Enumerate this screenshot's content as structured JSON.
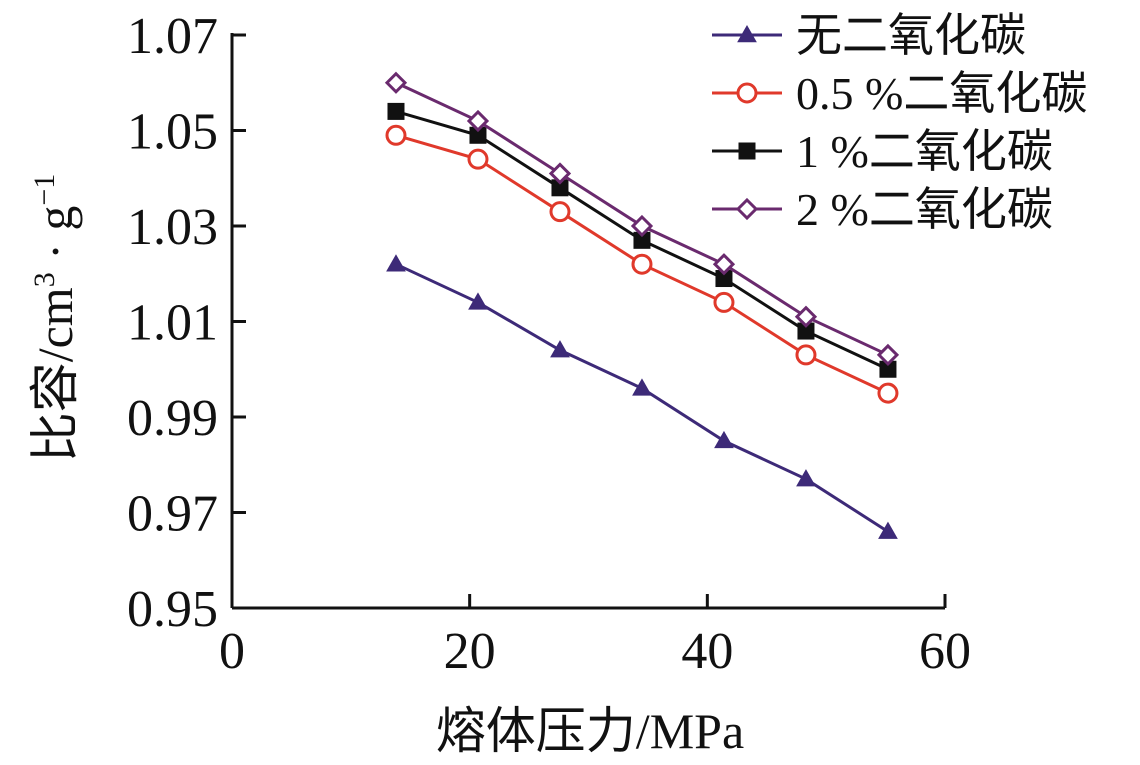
{
  "chart_data": {
    "type": "line",
    "title": "",
    "xlabel": "熔体压力/MPa",
    "ylabel_main": "比容/cm",
    "ylabel_sup1": "3",
    "ylabel_mid": " · g",
    "ylabel_sup2": "−1",
    "xlim": [
      0,
      60
    ],
    "ylim": [
      0.95,
      1.07
    ],
    "x_ticks": [
      0,
      20,
      40,
      60
    ],
    "x_tick_labels": [
      "0",
      "20",
      "40",
      "60"
    ],
    "y_ticks": [
      0.95,
      0.97,
      0.99,
      1.01,
      1.03,
      1.05,
      1.07
    ],
    "y_tick_labels": [
      "0.95",
      "0.97",
      "0.99",
      "1.01",
      "1.03",
      "1.05",
      "1.07"
    ],
    "grid": false,
    "legend_position": "top-right",
    "x": [
      13.8,
      20.7,
      27.6,
      34.5,
      41.4,
      48.3,
      55.2
    ],
    "series": [
      {
        "name": "无二氧化碳",
        "color": "#3d2a78",
        "marker": "triangle-filled",
        "values": [
          1.022,
          1.014,
          1.004,
          0.996,
          0.985,
          0.977,
          0.966
        ]
      },
      {
        "name": "0.5 %二氧化碳",
        "color": "#e0392b",
        "marker": "circle-open",
        "values": [
          1.049,
          1.044,
          1.033,
          1.022,
          1.014,
          1.003,
          0.995
        ]
      },
      {
        "name": "1 %二氧化碳",
        "color": "#111111",
        "marker": "square-filled",
        "values": [
          1.054,
          1.049,
          1.038,
          1.027,
          1.019,
          1.008,
          1.0
        ]
      },
      {
        "name": "2 %二氧化碳",
        "color": "#6a2a6e",
        "marker": "diamond-open",
        "values": [
          1.06,
          1.052,
          1.041,
          1.03,
          1.022,
          1.011,
          1.003
        ]
      }
    ]
  }
}
